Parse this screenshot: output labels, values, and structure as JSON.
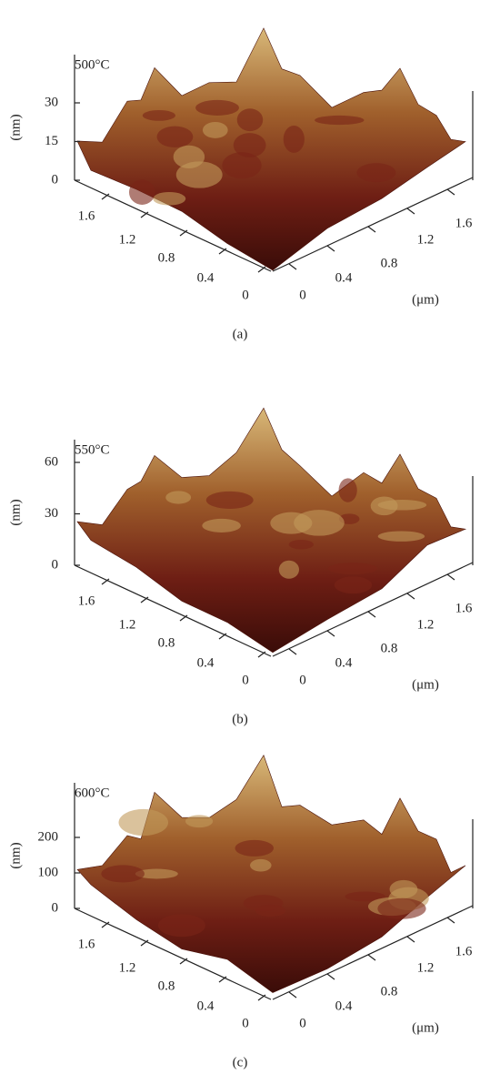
{
  "panels": [
    {
      "temperature": "500°C",
      "z_label": "(nm)",
      "z_ticks": [
        "0",
        "15",
        "30"
      ],
      "x_ticks": [
        "1.6",
        "1.2",
        "0.8",
        "0.4",
        "0"
      ],
      "y_ticks": [
        "0",
        "0.4",
        "0.8",
        "1.2",
        "1.6"
      ],
      "unit": "(μm)",
      "caption": "(a)"
    },
    {
      "temperature": "550°C",
      "z_label": "(nm)",
      "z_ticks": [
        "0",
        "30",
        "60"
      ],
      "x_ticks": [
        "1.6",
        "1.2",
        "0.8",
        "0.4",
        "0"
      ],
      "y_ticks": [
        "0",
        "0.4",
        "0.8",
        "1.2",
        "1.6"
      ],
      "unit": "(μm)",
      "caption": "(b)"
    },
    {
      "temperature": "600°C",
      "z_label": "(nm)",
      "z_ticks": [
        "0",
        "100",
        "200"
      ],
      "x_ticks": [
        "1.6",
        "1.2",
        "0.8",
        "0.4",
        "0"
      ],
      "y_ticks": [
        "0",
        "0.4",
        "0.8",
        "1.2",
        "1.6"
      ],
      "unit": "(μm)",
      "caption": "(c)"
    }
  ]
}
